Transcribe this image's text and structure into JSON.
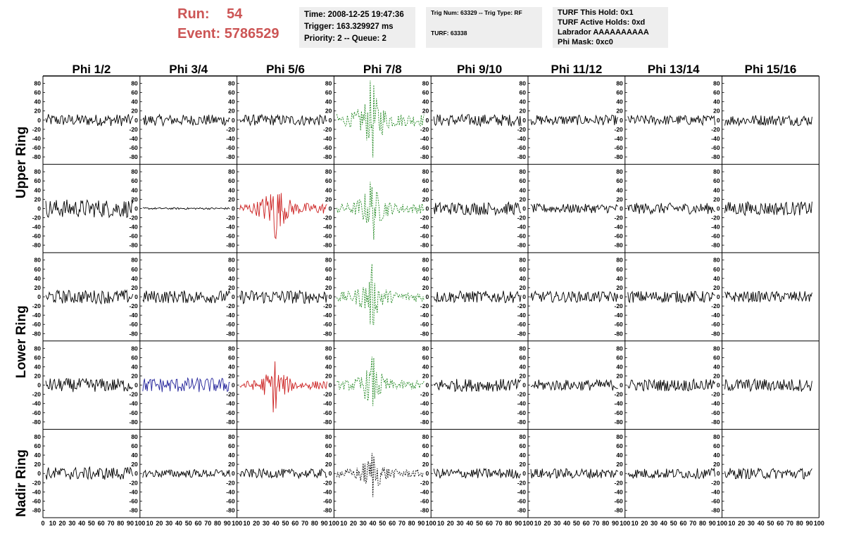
{
  "header": {
    "run_label": "Run:",
    "run_value": "54",
    "event_label": "Event:",
    "event_value": "5786529",
    "time": "Time: 2008-12-25 19:47:36",
    "trigger": "Trigger: 163.329927 ms",
    "priority": "Priority: 2 -- Queue: 2",
    "trig_num": "Trig Num: 63329 -- Trig Type: RF",
    "turf": "TURF: 63338",
    "turf_hold": "TURF This Hold: 0x1",
    "turf_active": "TURF Active Holds: 0xd",
    "labrador": "Labrador AAAAAAAAAA",
    "phi_mask": "Phi Mask: 0xc0"
  },
  "columns": [
    "Phi 1/2",
    "Phi 3/4",
    "Phi 5/6",
    "Phi 7/8",
    "Phi 9/10",
    "Phi 11/12",
    "Phi 13/14",
    "Phi 15/16"
  ],
  "rings": [
    "Upper Ring",
    "Lower Ring",
    "Nadir Ring"
  ],
  "colors": {
    "accent_red_text": "#cc5555",
    "trace_black": "#000000",
    "trace_blue": "#22229a",
    "trace_red": "#cc2222",
    "trace_green": "#228822",
    "info_bg": "#eeeeee"
  },
  "chart_data": {
    "type": "line",
    "y_ticks": [
      "80",
      "60",
      "40",
      "20",
      "0",
      "-20",
      "-40",
      "-60",
      "-80"
    ],
    "y_range": [
      -90,
      90
    ],
    "x_range": [
      0,
      100
    ],
    "x_tick_labels": [
      "0",
      "10",
      "20",
      "30",
      "40",
      "50",
      "60",
      "70",
      "80",
      "90",
      "100"
    ],
    "trace_samples": 100,
    "panels": [
      {
        "row": 0,
        "col": 0,
        "amp": 13,
        "color": "#000000",
        "style": "solid"
      },
      {
        "row": 0,
        "col": 1,
        "amp": 12,
        "color": "#000000",
        "style": "solid"
      },
      {
        "row": 0,
        "col": 2,
        "amp": 12,
        "color": "#000000",
        "style": "solid"
      },
      {
        "row": 0,
        "col": 3,
        "amp": 25,
        "color": "#228822",
        "style": "dashed",
        "pulse": true
      },
      {
        "row": 0,
        "col": 4,
        "amp": 13,
        "color": "#000000",
        "style": "solid"
      },
      {
        "row": 0,
        "col": 5,
        "amp": 11,
        "color": "#000000",
        "style": "solid"
      },
      {
        "row": 0,
        "col": 6,
        "amp": 11,
        "color": "#000000",
        "style": "solid"
      },
      {
        "row": 0,
        "col": 7,
        "amp": 12,
        "color": "#000000",
        "style": "solid"
      },
      {
        "row": 1,
        "col": 0,
        "amp": 20,
        "color": "#000000",
        "style": "solid"
      },
      {
        "row": 1,
        "col": 1,
        "amp": 2,
        "color": "#000000",
        "style": "solid"
      },
      {
        "row": 1,
        "col": 2,
        "amp": 22,
        "color": "#cc2222",
        "style": "solid",
        "pulse": true
      },
      {
        "row": 1,
        "col": 3,
        "amp": 20,
        "color": "#228822",
        "style": "dashed",
        "pulse": true
      },
      {
        "row": 1,
        "col": 4,
        "amp": 14,
        "color": "#000000",
        "style": "solid"
      },
      {
        "row": 1,
        "col": 5,
        "amp": 10,
        "color": "#000000",
        "style": "solid"
      },
      {
        "row": 1,
        "col": 6,
        "amp": 12,
        "color": "#000000",
        "style": "solid"
      },
      {
        "row": 1,
        "col": 7,
        "amp": 15,
        "color": "#000000",
        "style": "solid"
      },
      {
        "row": 2,
        "col": 0,
        "amp": 15,
        "color": "#000000",
        "style": "solid"
      },
      {
        "row": 2,
        "col": 1,
        "amp": 14,
        "color": "#000000",
        "style": "solid"
      },
      {
        "row": 2,
        "col": 2,
        "amp": 15,
        "color": "#000000",
        "style": "solid"
      },
      {
        "row": 2,
        "col": 3,
        "amp": 20,
        "color": "#228822",
        "style": "dashed",
        "pulse": true
      },
      {
        "row": 2,
        "col": 4,
        "amp": 13,
        "color": "#000000",
        "style": "solid"
      },
      {
        "row": 2,
        "col": 5,
        "amp": 12,
        "color": "#000000",
        "style": "solid"
      },
      {
        "row": 2,
        "col": 6,
        "amp": 13,
        "color": "#000000",
        "style": "solid"
      },
      {
        "row": 2,
        "col": 7,
        "amp": 12,
        "color": "#000000",
        "style": "solid"
      },
      {
        "row": 3,
        "col": 0,
        "amp": 15,
        "color": "#000000",
        "style": "solid"
      },
      {
        "row": 3,
        "col": 1,
        "amp": 16,
        "color": "#22229a",
        "style": "solid"
      },
      {
        "row": 3,
        "col": 2,
        "amp": 17,
        "color": "#cc2222",
        "style": "solid",
        "pulse": true
      },
      {
        "row": 3,
        "col": 3,
        "amp": 18,
        "color": "#228822",
        "style": "dashed",
        "pulse": true
      },
      {
        "row": 3,
        "col": 4,
        "amp": 14,
        "color": "#000000",
        "style": "solid"
      },
      {
        "row": 3,
        "col": 5,
        "amp": 12,
        "color": "#000000",
        "style": "solid"
      },
      {
        "row": 3,
        "col": 6,
        "amp": 13,
        "color": "#000000",
        "style": "solid"
      },
      {
        "row": 3,
        "col": 7,
        "amp": 14,
        "color": "#000000",
        "style": "solid"
      },
      {
        "row": 4,
        "col": 0,
        "amp": 14,
        "color": "#000000",
        "style": "solid"
      },
      {
        "row": 4,
        "col": 1,
        "amp": 9,
        "color": "#000000",
        "style": "solid"
      },
      {
        "row": 4,
        "col": 2,
        "amp": 10,
        "color": "#000000",
        "style": "solid"
      },
      {
        "row": 4,
        "col": 3,
        "amp": 16,
        "color": "#000000",
        "style": "dashed",
        "pulse": true
      },
      {
        "row": 4,
        "col": 4,
        "amp": 11,
        "color": "#000000",
        "style": "solid"
      },
      {
        "row": 4,
        "col": 5,
        "amp": 11,
        "color": "#000000",
        "style": "solid"
      },
      {
        "row": 4,
        "col": 6,
        "amp": 11,
        "color": "#000000",
        "style": "solid"
      },
      {
        "row": 4,
        "col": 7,
        "amp": 12,
        "color": "#000000",
        "style": "solid"
      }
    ]
  }
}
